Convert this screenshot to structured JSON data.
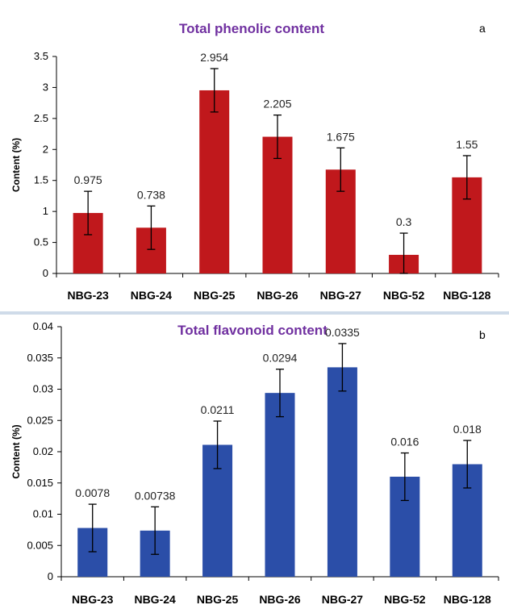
{
  "chart_data": [
    {
      "type": "bar",
      "title": "Total phenolic content",
      "panel_label": "a",
      "ylabel": "Content (%)",
      "xlabel": "",
      "categories": [
        "NBG-23",
        "NBG-24",
        "NBG-25",
        "NBG-26",
        "NBG-27",
        "NBG-52",
        "NBG-128"
      ],
      "values": [
        0.975,
        0.738,
        2.954,
        2.205,
        1.675,
        0.3,
        1.55
      ],
      "data_labels": [
        "0.975",
        "0.738",
        "2.954",
        "2.205",
        "1.675",
        "0.3",
        "1.55"
      ],
      "errors": [
        0.35,
        0.35,
        0.35,
        0.35,
        0.35,
        0.35,
        0.35
      ],
      "ylim": [
        0,
        3.5
      ],
      "yticks": [
        "0",
        "0.5",
        "1",
        "1.5",
        "2",
        "2.5",
        "3",
        "3.5"
      ],
      "color": "#c0181c",
      "grid": false
    },
    {
      "type": "bar",
      "title": "Total flavonoid content",
      "panel_label": "b",
      "ylabel": "Content (%)",
      "xlabel": "",
      "categories": [
        "NBG-23",
        "NBG-24",
        "NBG-25",
        "NBG-26",
        "NBG-27",
        "NBG-52",
        "NBG-128"
      ],
      "values": [
        0.0078,
        0.00738,
        0.0211,
        0.0294,
        0.0335,
        0.016,
        0.018
      ],
      "data_labels": [
        "0.0078",
        "0.00738",
        "0.0211",
        "0.0294",
        "0.0335",
        "0.016",
        "0.018"
      ],
      "errors": [
        0.0038,
        0.0038,
        0.0038,
        0.0038,
        0.0038,
        0.0038,
        0.0038
      ],
      "ylim": [
        0,
        0.04
      ],
      "yticks": [
        "0",
        "0.005",
        "0.01",
        "0.015",
        "0.02",
        "0.025",
        "0.03",
        "0.035",
        "0.04"
      ],
      "color": "#2b4ea8",
      "grid": false
    }
  ]
}
